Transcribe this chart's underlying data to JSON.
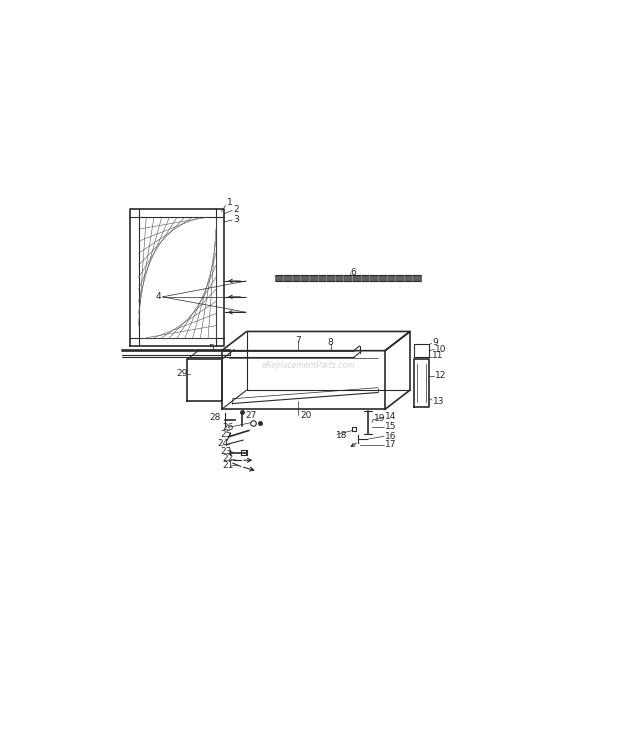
{
  "bg_color": "#ffffff",
  "line_color": "#2a2a2a",
  "watermark": "eReplacementParts.com",
  "fig_width": 6.2,
  "fig_height": 7.42,
  "dpi": 100,
  "xlim": [
    0,
    10
  ],
  "ylim": [
    0,
    10
  ]
}
